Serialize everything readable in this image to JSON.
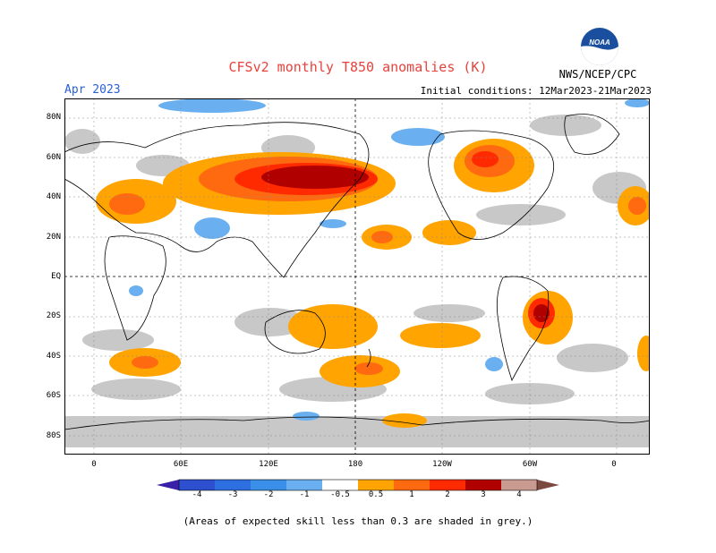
{
  "header": {
    "title": "CFSv2 monthly T850 anomalies (K)",
    "month": "Apr 2023",
    "initial_conditions": "Initial conditions: 12Mar2023-21Mar2023",
    "agency": "NWS/NCEP/CPC",
    "logo_text": "NOAA"
  },
  "axes": {
    "lat_labels": [
      "80N",
      "60N",
      "40N",
      "20N",
      "EQ",
      "20S",
      "40S",
      "60S",
      "80S"
    ],
    "lon_labels": [
      "0",
      "60E",
      "120E",
      "180",
      "120W",
      "60W",
      "0"
    ]
  },
  "colorbar": {
    "labels": [
      "-4",
      "-3",
      "-2",
      "-1",
      "-0.5",
      "0.5",
      "1",
      "2",
      "3",
      "4"
    ],
    "colors": [
      "#3a1fa8",
      "#2d4fd0",
      "#3a8fe8",
      "#5aa8f0",
      "#8ec8f8",
      "#ffffff",
      "#ffa400",
      "#ff6a10",
      "#ff2a00",
      "#b00000",
      "#8a0000",
      "#c89a90",
      "#7a4a40"
    ]
  },
  "footnote": "(Areas of expected skill less than 0.3 are shaded in grey.)",
  "legend_colors": {
    "grey": "#c8c8c8",
    "orange": "#ffa400",
    "red_orange": "#ff6a10",
    "red": "#ff2a00",
    "dark_red": "#b00000",
    "light_blue": "#6ab0f0",
    "blue": "#3a8fe8"
  }
}
